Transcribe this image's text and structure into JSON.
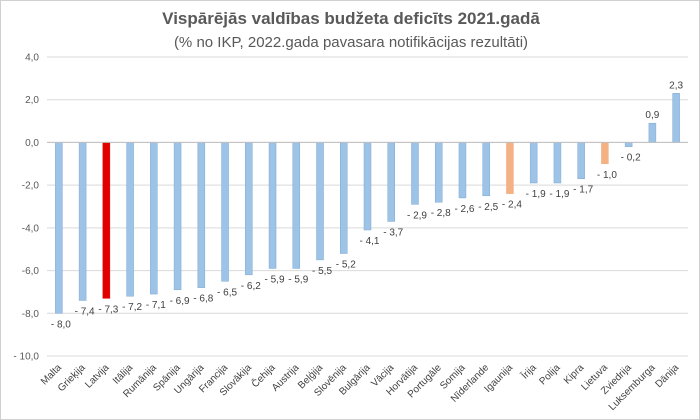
{
  "chart_data": {
    "type": "bar",
    "title": "Vispārējās valdības budžeta deficīts 2021.gadā",
    "subtitle": "(% no IKP, 2022.gada pavasara notifikācijas rezultāti)",
    "categories": [
      "Malta",
      "Grieķija",
      "Latvija",
      "Itālija",
      "Rumānija",
      "Spānija",
      "Ungārija",
      "Francija",
      "Slovākija",
      "Čehija",
      "Austrija",
      "Beļģija",
      "Slovēnija",
      "Bulgārija",
      "Vācija",
      "Horvātija",
      "Portugāle",
      "Somija",
      "Nīderlande",
      "Igaunija",
      "Īrija",
      "Polija",
      "Kipra",
      "Lietuva",
      "Zviedrija",
      "Luksemburga",
      "Dānija"
    ],
    "values": [
      -8.0,
      -7.4,
      -7.3,
      -7.2,
      -7.1,
      -6.9,
      -6.8,
      -6.5,
      -6.2,
      -5.9,
      -5.9,
      -5.5,
      -5.2,
      -4.1,
      -3.7,
      -2.9,
      -2.8,
      -2.6,
      -2.5,
      -2.4,
      -1.9,
      -1.9,
      -1.7,
      -1.0,
      -0.2,
      0.9,
      2.3
    ],
    "data_labels": [
      "- 8,0",
      "- 7,4",
      "- 7,3",
      "- 7,2",
      "- 7,1",
      "- 6,9",
      "- 6,8",
      "- 6,5",
      "- 6,2",
      "- 5,9",
      "- 5,9",
      "- 5,5",
      "- 5,2",
      "- 4,1",
      "- 3,7",
      "- 2,9",
      "- 2,8",
      "- 2,6",
      "- 2,5",
      "- 2,4",
      "- 1,9",
      "- 1,9",
      "- 1,7",
      "- 1,0",
      "- 0,2",
      "0,9",
      "2,3"
    ],
    "highlight": {
      "Latvija": "#e00000",
      "Igaunija": "#f4b183",
      "Lietuva": "#f4b183"
    },
    "default_color": "#9dc3e6",
    "yticks": [
      4.0,
      2.0,
      0.0,
      -2.0,
      -4.0,
      -6.0,
      -8.0,
      -10.0
    ],
    "ytick_labels": [
      "4,0",
      "2,0",
      "0,0",
      "-2,0",
      "-4,0",
      "-6,0",
      "-8,0",
      "- 10,0"
    ],
    "ylim": [
      -10,
      4
    ],
    "grid": true,
    "legend": "none"
  }
}
